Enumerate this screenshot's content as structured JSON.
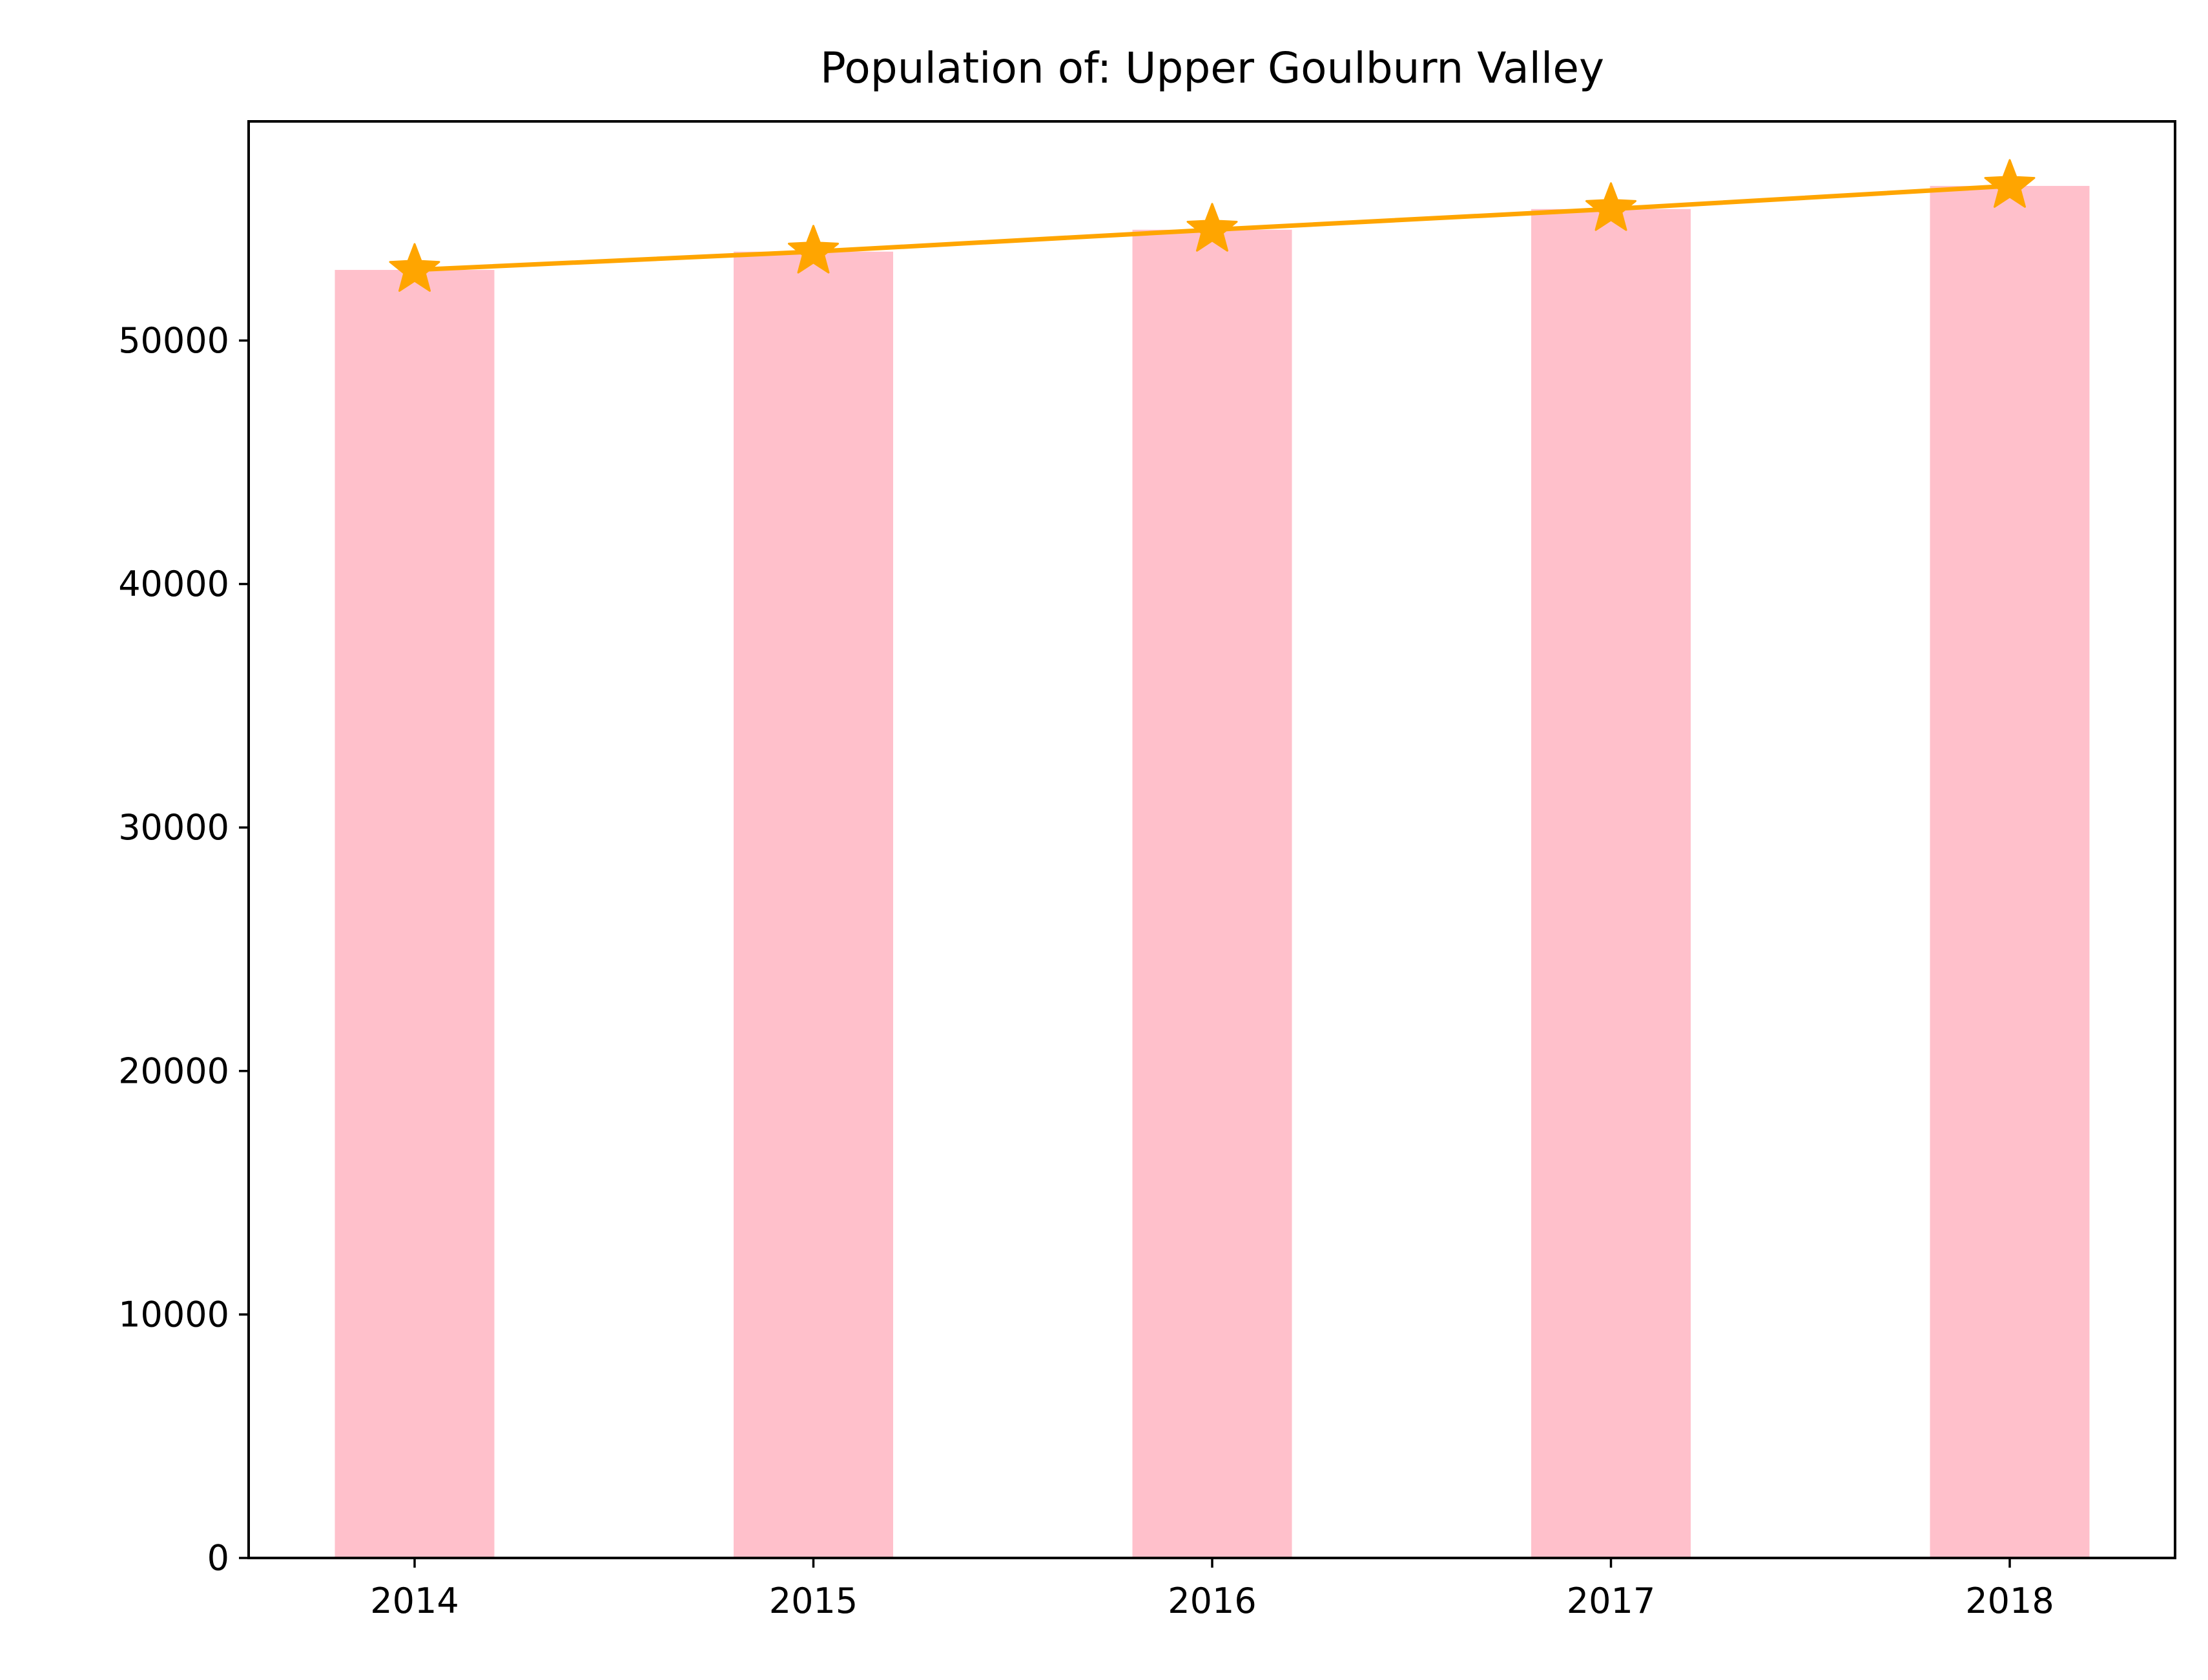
{
  "chart_data": {
    "type": "bar",
    "title": "Population of: Upper Goulburn Valley",
    "xlabel": "",
    "ylabel": "",
    "categories": [
      "2014",
      "2015",
      "2016",
      "2017",
      "2018"
    ],
    "series": [
      {
        "type": "bar",
        "values": [
          52900,
          53650,
          54550,
          55400,
          56350
        ],
        "color": "#ffc0cb"
      },
      {
        "type": "line",
        "marker": "star",
        "values": [
          52900,
          53650,
          54550,
          55400,
          56350
        ],
        "color": "#ffa500"
      }
    ],
    "ylim": [
      0,
      59000
    ],
    "yticks": [
      0,
      10000,
      20000,
      30000,
      40000,
      50000
    ],
    "ytick_labels": [
      "0",
      "10000",
      "20000",
      "30000",
      "40000",
      "50000"
    ],
    "grid": false,
    "legend": "none"
  }
}
